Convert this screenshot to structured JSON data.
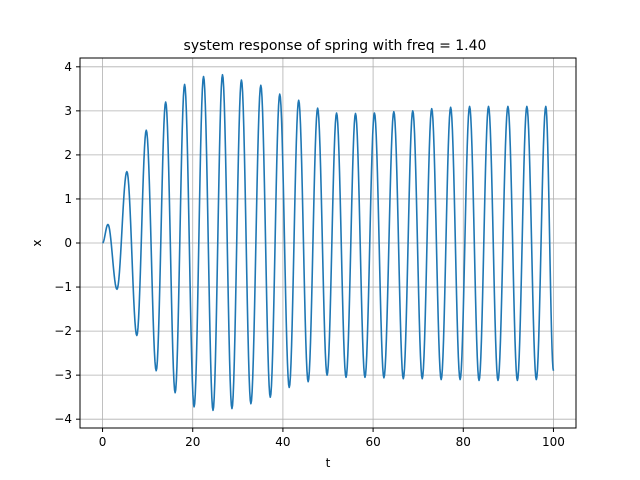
{
  "chart_data": {
    "type": "line",
    "title": "system response of spring with freq = 1.40",
    "xlabel": "t",
    "ylabel": "x",
    "xlim": [
      -5,
      105
    ],
    "ylim": [
      -4.2,
      4.2
    ],
    "x_ticks": [
      0,
      20,
      40,
      60,
      80,
      100
    ],
    "y_ticks": [
      -4,
      -3,
      -2,
      -1,
      0,
      1,
      2,
      3,
      4
    ],
    "x_tick_labels": [
      "0",
      "20",
      "40",
      "60",
      "80",
      "100"
    ],
    "y_tick_labels": [
      "−4",
      "−3",
      "−2",
      "−1",
      "0",
      "1",
      "2",
      "3",
      "4"
    ],
    "grid": true,
    "legend": "none",
    "line_color": "#1f77b4",
    "series": [
      {
        "x": [
          0,
          1.2,
          3.2,
          5.4,
          7.6,
          9.7,
          11.9,
          14.0,
          16.1,
          18.2,
          20.3,
          22.4,
          24.5,
          26.6,
          28.7,
          30.8,
          32.9,
          35.1,
          37.2,
          39.3,
          41.4,
          43.5,
          45.6,
          47.7,
          49.8,
          51.9,
          54.0,
          56.1,
          58.2,
          60.3,
          62.4,
          64.6,
          66.7,
          68.8,
          70.9,
          73.0,
          75.1,
          77.2,
          79.3,
          81.4,
          83.5,
          85.6,
          87.7,
          89.9,
          92.0,
          94.1,
          96.2,
          98.3,
          100
        ],
        "y": [
          0,
          0.42,
          -1.05,
          1.62,
          -2.1,
          2.56,
          -2.9,
          3.2,
          -3.4,
          3.6,
          -3.72,
          3.78,
          -3.8,
          3.82,
          -3.76,
          3.7,
          -3.65,
          3.58,
          -3.5,
          3.38,
          -3.28,
          3.24,
          -3.15,
          3.06,
          -3.0,
          2.95,
          -3.05,
          2.94,
          -3.05,
          2.95,
          -3.06,
          2.98,
          -3.08,
          3.0,
          -3.08,
          3.05,
          -3.1,
          3.08,
          -3.1,
          3.1,
          -3.12,
          3.1,
          -3.12,
          3.1,
          -3.12,
          3.1,
          -3.1,
          3.1,
          -2.9
        ]
      }
    ]
  }
}
